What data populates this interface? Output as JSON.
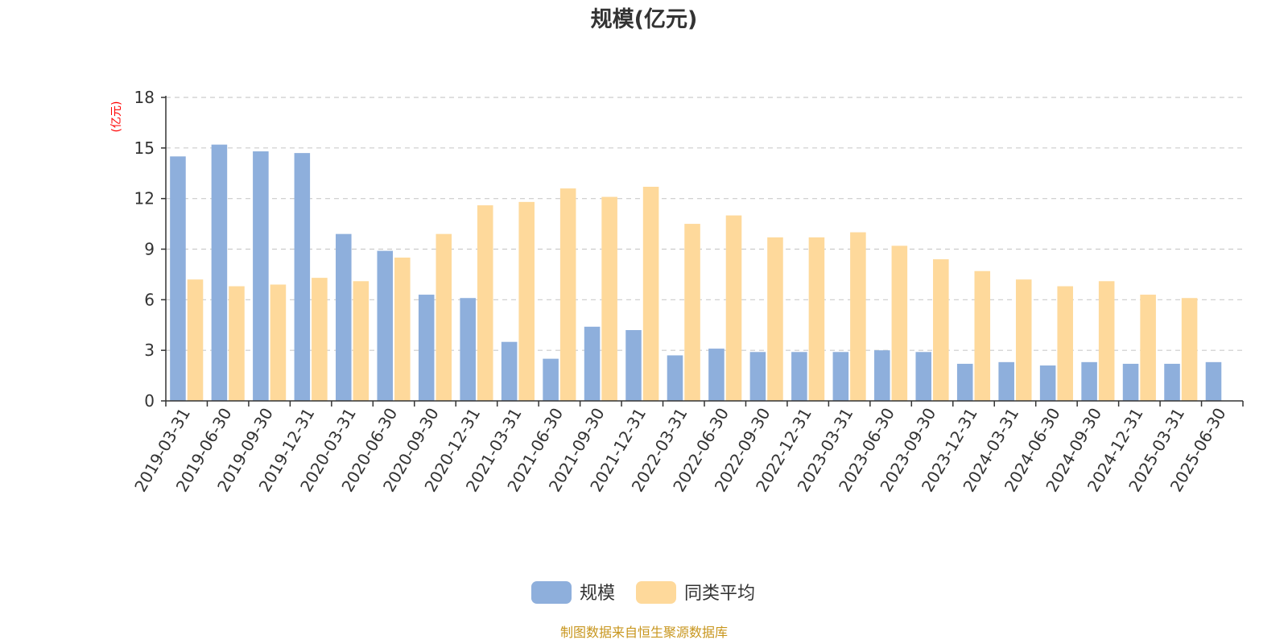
{
  "chart_data": {
    "type": "bar",
    "title": "规模(亿元)",
    "y_unit": "(亿元)",
    "ylim": [
      0,
      18
    ],
    "yticks": [
      0,
      3,
      6,
      9,
      12,
      15,
      18
    ],
    "grid": true,
    "legend_position": "bottom-center",
    "categories": [
      "2019-03-31",
      "2019-06-30",
      "2019-09-30",
      "2019-12-31",
      "2020-03-31",
      "2020-06-30",
      "2020-09-30",
      "2020-12-31",
      "2021-03-31",
      "2021-06-30",
      "2021-09-30",
      "2021-12-31",
      "2022-03-31",
      "2022-06-30",
      "2022-09-30",
      "2022-12-31",
      "2023-03-31",
      "2023-06-30",
      "2023-09-30",
      "2023-12-31",
      "2024-03-31",
      "2024-06-30",
      "2024-09-30",
      "2024-12-31",
      "2025-03-31",
      "2025-06-30"
    ],
    "series": [
      {
        "name": "规模",
        "color": "#8eafdc",
        "values": [
          14.5,
          15.2,
          14.8,
          14.7,
          9.9,
          8.9,
          6.3,
          6.1,
          3.5,
          2.5,
          4.4,
          4.2,
          2.7,
          3.1,
          2.9,
          2.9,
          2.9,
          3.0,
          2.9,
          2.2,
          2.3,
          2.1,
          2.3,
          2.2,
          2.2,
          2.3
        ]
      },
      {
        "name": "同类平均",
        "color": "#fed99b",
        "values": [
          7.2,
          6.8,
          6.9,
          7.3,
          7.1,
          8.5,
          9.9,
          11.6,
          11.8,
          12.6,
          12.1,
          12.7,
          10.5,
          11.0,
          9.7,
          9.7,
          10.0,
          9.2,
          8.4,
          7.7,
          7.2,
          6.8,
          7.1,
          6.3,
          6.1,
          null
        ]
      }
    ]
  },
  "colors": {
    "unit_label": "#ff0000",
    "source_text": "#c8961e",
    "axis": "#333333",
    "grid": "#cccccc"
  },
  "source_note": "制图数据来自恒生聚源数据库"
}
